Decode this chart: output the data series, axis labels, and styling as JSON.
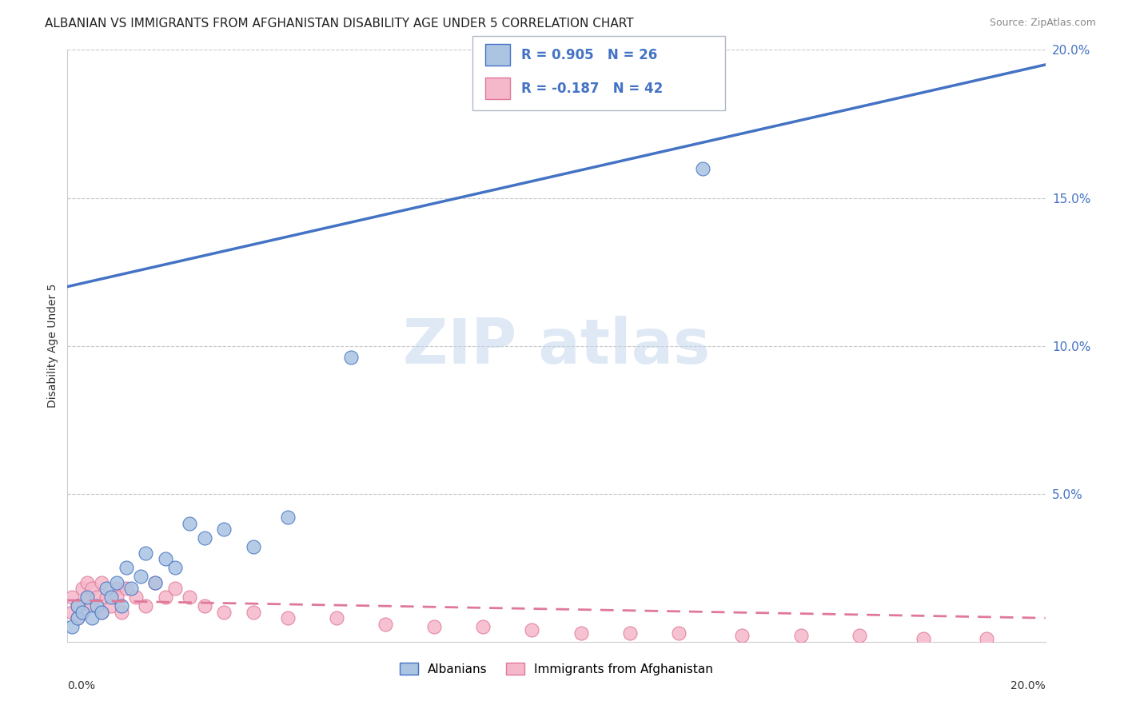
{
  "title": "ALBANIAN VS IMMIGRANTS FROM AFGHANISTAN DISABILITY AGE UNDER 5 CORRELATION CHART",
  "source": "Source: ZipAtlas.com",
  "ylabel": "Disability Age Under 5",
  "xlim": [
    0.0,
    0.2
  ],
  "ylim": [
    0.0,
    0.2
  ],
  "yticks": [
    0.0,
    0.05,
    0.1,
    0.15,
    0.2
  ],
  "ytick_labels": [
    "",
    "5.0%",
    "10.0%",
    "15.0%",
    "20.0%"
  ],
  "r_albanian": 0.905,
  "n_albanian": 26,
  "r_afghanistan": -0.187,
  "n_afghanistan": 42,
  "blue_color": "#aac4e2",
  "blue_line_color": "#4472c4",
  "pink_color": "#f5b8ca",
  "pink_line_color": "#e07898",
  "legend_label_albanian": "Albanians",
  "legend_label_afghanistan": "Immigrants from Afghanistan",
  "legend_r_color": "#4472c4",
  "blue_line": [
    0.0,
    0.12,
    0.2,
    0.195
  ],
  "pink_line": [
    0.0,
    0.014,
    0.2,
    0.008
  ],
  "albanian_x": [
    0.001,
    0.002,
    0.002,
    0.003,
    0.004,
    0.005,
    0.006,
    0.007,
    0.008,
    0.009,
    0.01,
    0.011,
    0.012,
    0.013,
    0.015,
    0.016,
    0.018,
    0.02,
    0.022,
    0.025,
    0.028,
    0.032,
    0.038,
    0.045,
    0.058,
    0.13
  ],
  "albanian_y": [
    0.005,
    0.008,
    0.012,
    0.01,
    0.015,
    0.008,
    0.012,
    0.01,
    0.018,
    0.015,
    0.02,
    0.012,
    0.025,
    0.018,
    0.022,
    0.03,
    0.02,
    0.028,
    0.025,
    0.04,
    0.035,
    0.038,
    0.032,
    0.042,
    0.096,
    0.16
  ],
  "afghanistan_x": [
    0.001,
    0.001,
    0.002,
    0.002,
    0.003,
    0.003,
    0.004,
    0.004,
    0.005,
    0.005,
    0.006,
    0.007,
    0.007,
    0.008,
    0.009,
    0.01,
    0.01,
    0.011,
    0.012,
    0.014,
    0.016,
    0.018,
    0.02,
    0.022,
    0.025,
    0.028,
    0.032,
    0.038,
    0.045,
    0.055,
    0.065,
    0.075,
    0.085,
    0.095,
    0.105,
    0.115,
    0.125,
    0.138,
    0.15,
    0.162,
    0.175,
    0.188
  ],
  "afghanistan_y": [
    0.01,
    0.015,
    0.008,
    0.012,
    0.018,
    0.01,
    0.015,
    0.02,
    0.012,
    0.018,
    0.015,
    0.01,
    0.02,
    0.015,
    0.012,
    0.018,
    0.015,
    0.01,
    0.018,
    0.015,
    0.012,
    0.02,
    0.015,
    0.018,
    0.015,
    0.012,
    0.01,
    0.01,
    0.008,
    0.008,
    0.006,
    0.005,
    0.005,
    0.004,
    0.003,
    0.003,
    0.003,
    0.002,
    0.002,
    0.002,
    0.001,
    0.001
  ]
}
